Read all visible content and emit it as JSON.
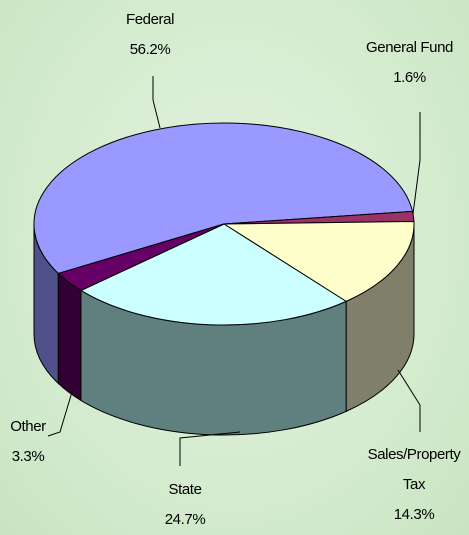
{
  "chart_data": {
    "type": "pie3d",
    "categories": [
      "Federal",
      "General Fund",
      "Sales/Property Tax",
      "State",
      "Other"
    ],
    "values": [
      56.2,
      1.6,
      14.3,
      24.7,
      3.3
    ],
    "value_labels": [
      "56.2%",
      "1.6%",
      "14.3%",
      "24.7%",
      "3.3%"
    ],
    "colors": [
      "#9999ff",
      "#993366",
      "#ffffcc",
      "#ccffff",
      "#660066"
    ],
    "side_colors": [
      "#50508a",
      "#4d1a33",
      "#80806a",
      "#608080",
      "#330033"
    ]
  }
}
